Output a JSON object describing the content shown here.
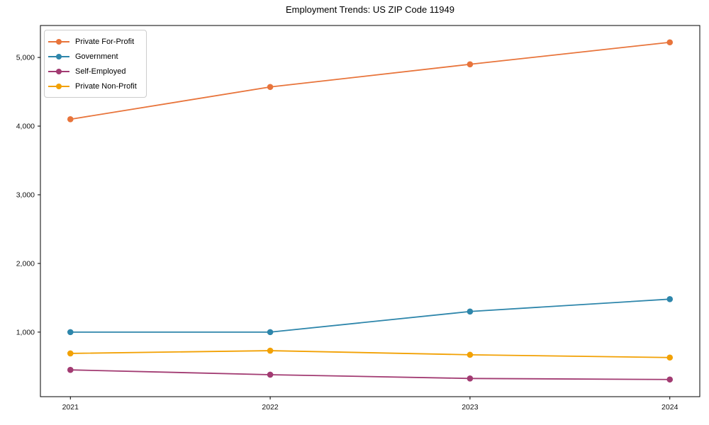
{
  "chart": {
    "title": "Employment Trends: US ZIP Code 11949"
  },
  "chart_data": {
    "type": "line",
    "title": "Employment Trends: US ZIP Code 11949",
    "xlabel": "",
    "ylabel": "",
    "x": [
      2021,
      2022,
      2023,
      2024
    ],
    "categories": [
      "2021",
      "2022",
      "2023",
      "2024"
    ],
    "series": [
      {
        "name": "Private For-Profit",
        "color": "#e8743b",
        "values": [
          4100,
          4570,
          4900,
          5220
        ]
      },
      {
        "name": "Government",
        "color": "#2e86ab",
        "values": [
          1000,
          1000,
          1300,
          1480
        ]
      },
      {
        "name": "Self-Employed",
        "color": "#a23b72",
        "values": [
          450,
          380,
          325,
          310
        ]
      },
      {
        "name": "Private Non-Profit",
        "color": "#f2a104",
        "values": [
          690,
          730,
          670,
          630
        ]
      }
    ],
    "yticks": [
      1000,
      2000,
      3000,
      4000,
      5000
    ],
    "ytick_labels": [
      "1,000",
      "2,000",
      "3,000",
      "4,000",
      "5,000"
    ],
    "ylim": [
      60,
      5465
    ],
    "xlim": [
      2020.85,
      2024.15
    ],
    "grid": false,
    "legend_position": "upper-left",
    "marker": "circle",
    "axis_color": "#000000",
    "tick_label_color": "#111111"
  }
}
